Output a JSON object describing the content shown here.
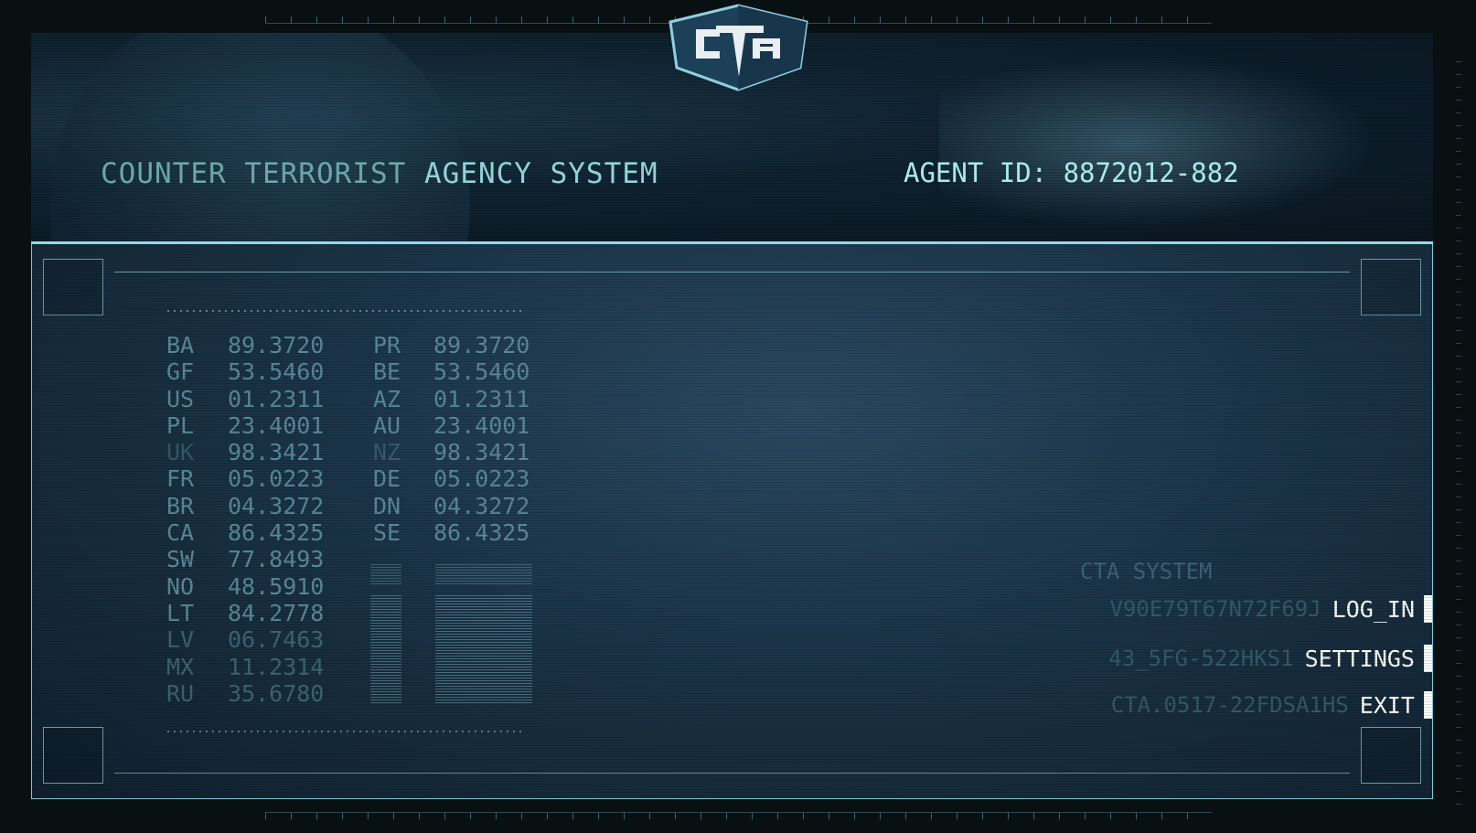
{
  "header": {
    "logo_text": "CTA",
    "title_part1": "COUNTER TERRORIST",
    "title_part2": "AGENCY SYSTEM",
    "agent_id": "AGENT ID: 8872012-882"
  },
  "data_table": {
    "rows": [
      {
        "c1": "BA",
        "v1": "89.3720",
        "c2": "PR",
        "v2": "89.3720"
      },
      {
        "c1": "GF",
        "v1": "53.5460",
        "c2": "BE",
        "v2": "53.5460"
      },
      {
        "c1": "US",
        "v1": "01.2311",
        "c2": "AZ",
        "v2": "01.2311"
      },
      {
        "c1": "PL",
        "v1": "23.4001",
        "c2": "AU",
        "v2": "23.4001"
      },
      {
        "c1": "UK",
        "v1": "98.3421",
        "c2": "NZ",
        "v2": "98.3421"
      },
      {
        "c1": "FR",
        "v1": "05.0223",
        "c2": "DE",
        "v2": "05.0223"
      },
      {
        "c1": "BR",
        "v1": "04.3272",
        "c2": "DN",
        "v2": "04.3272"
      },
      {
        "c1": "CA",
        "v1": "86.4325",
        "c2": "SE",
        "v2": "86.4325"
      },
      {
        "c1": "SW",
        "v1": "77.8493",
        "c2": "",
        "v2": ""
      },
      {
        "c1": "NO",
        "v1": "48.5910",
        "c2": "",
        "v2": ""
      },
      {
        "c1": "LT",
        "v1": "84.2778",
        "c2": "",
        "v2": ""
      },
      {
        "c1": "LV",
        "v1": "06.7463",
        "c2": "",
        "v2": ""
      },
      {
        "c1": "MX",
        "v1": "11.2314",
        "c2": "",
        "v2": ""
      },
      {
        "c1": "RU",
        "v1": "35.6780",
        "c2": "",
        "v2": ""
      }
    ]
  },
  "menu": {
    "heading": "CTA SYSTEM",
    "items": [
      {
        "code": "V90E79T67N72F69J",
        "label": "LOG_IN"
      },
      {
        "code": "43_5FG-522HKS1",
        "label": "SETTINGS"
      },
      {
        "code": "CTA.0517-22FDSA1HS",
        "label": "EXIT"
      }
    ]
  },
  "colors": {
    "accent": "#8fd3d8",
    "panel": "#1b3448",
    "menu_text": "#ffffff"
  }
}
